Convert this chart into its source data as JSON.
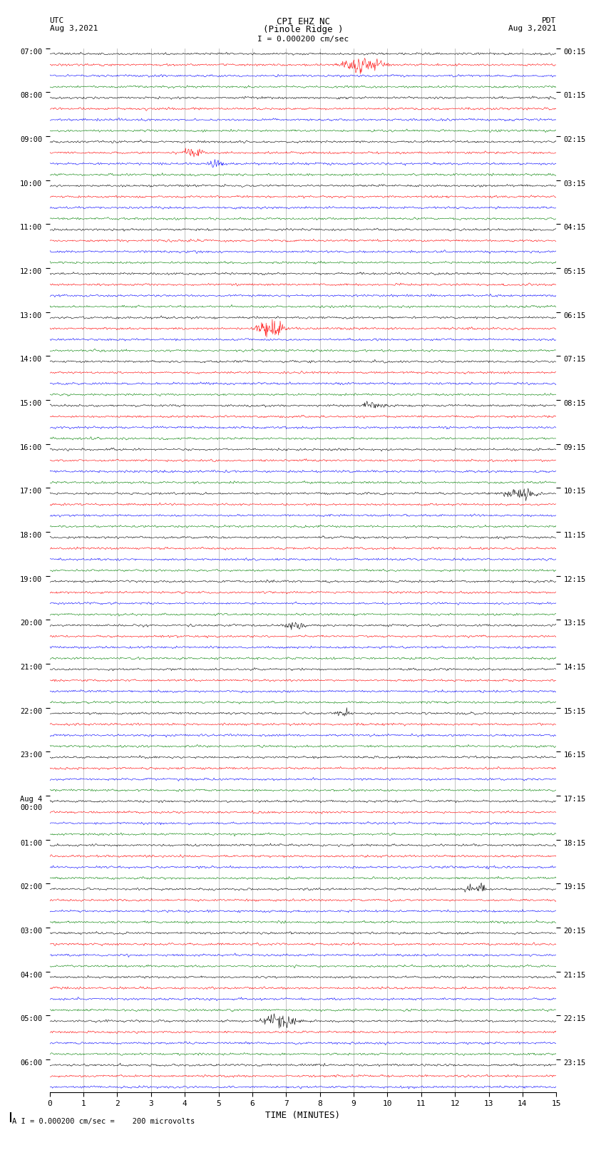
{
  "title_line1": "CPI EHZ NC",
  "title_line2": "(Pinole Ridge )",
  "scale_label": "I = 0.000200 cm/sec",
  "utc_label": "UTC",
  "utc_date": "Aug 3,2021",
  "pdt_label": "PDT",
  "pdt_date": "Aug 3,2021",
  "bottom_label": "TIME (MINUTES)",
  "bottom_note": "A I = 0.000200 cm/sec =    200 microvolts",
  "xlabel_ticks": [
    0,
    1,
    2,
    3,
    4,
    5,
    6,
    7,
    8,
    9,
    10,
    11,
    12,
    13,
    14,
    15
  ],
  "left_labels": [
    [
      "07:00",
      0
    ],
    [
      "08:00",
      4
    ],
    [
      "09:00",
      8
    ],
    [
      "10:00",
      12
    ],
    [
      "11:00",
      16
    ],
    [
      "12:00",
      20
    ],
    [
      "13:00",
      24
    ],
    [
      "14:00",
      28
    ],
    [
      "15:00",
      32
    ],
    [
      "16:00",
      36
    ],
    [
      "17:00",
      40
    ],
    [
      "18:00",
      44
    ],
    [
      "19:00",
      48
    ],
    [
      "20:00",
      52
    ],
    [
      "21:00",
      56
    ],
    [
      "22:00",
      60
    ],
    [
      "23:00",
      64
    ],
    [
      "Aug 4\n00:00",
      68
    ],
    [
      "01:00",
      72
    ],
    [
      "02:00",
      76
    ],
    [
      "03:00",
      80
    ],
    [
      "04:00",
      84
    ],
    [
      "05:00",
      88
    ],
    [
      "06:00",
      92
    ]
  ],
  "right_labels": [
    [
      "00:15",
      0
    ],
    [
      "01:15",
      4
    ],
    [
      "02:15",
      8
    ],
    [
      "03:15",
      12
    ],
    [
      "04:15",
      16
    ],
    [
      "05:15",
      20
    ],
    [
      "06:15",
      24
    ],
    [
      "07:15",
      28
    ],
    [
      "08:15",
      32
    ],
    [
      "09:15",
      36
    ],
    [
      "10:15",
      40
    ],
    [
      "11:15",
      44
    ],
    [
      "12:15",
      48
    ],
    [
      "13:15",
      52
    ],
    [
      "14:15",
      56
    ],
    [
      "15:15",
      60
    ],
    [
      "16:15",
      64
    ],
    [
      "17:15",
      68
    ],
    [
      "18:15",
      72
    ],
    [
      "19:15",
      76
    ],
    [
      "20:15",
      80
    ],
    [
      "21:15",
      84
    ],
    [
      "22:15",
      88
    ],
    [
      "23:15",
      92
    ]
  ],
  "colors": [
    "black",
    "red",
    "blue",
    "green"
  ],
  "num_rows": 95,
  "bg_color": "white",
  "grid_color": "#888888",
  "trace_amplitude": 0.3,
  "noise_amplitude": 0.055,
  "event_rows": []
}
